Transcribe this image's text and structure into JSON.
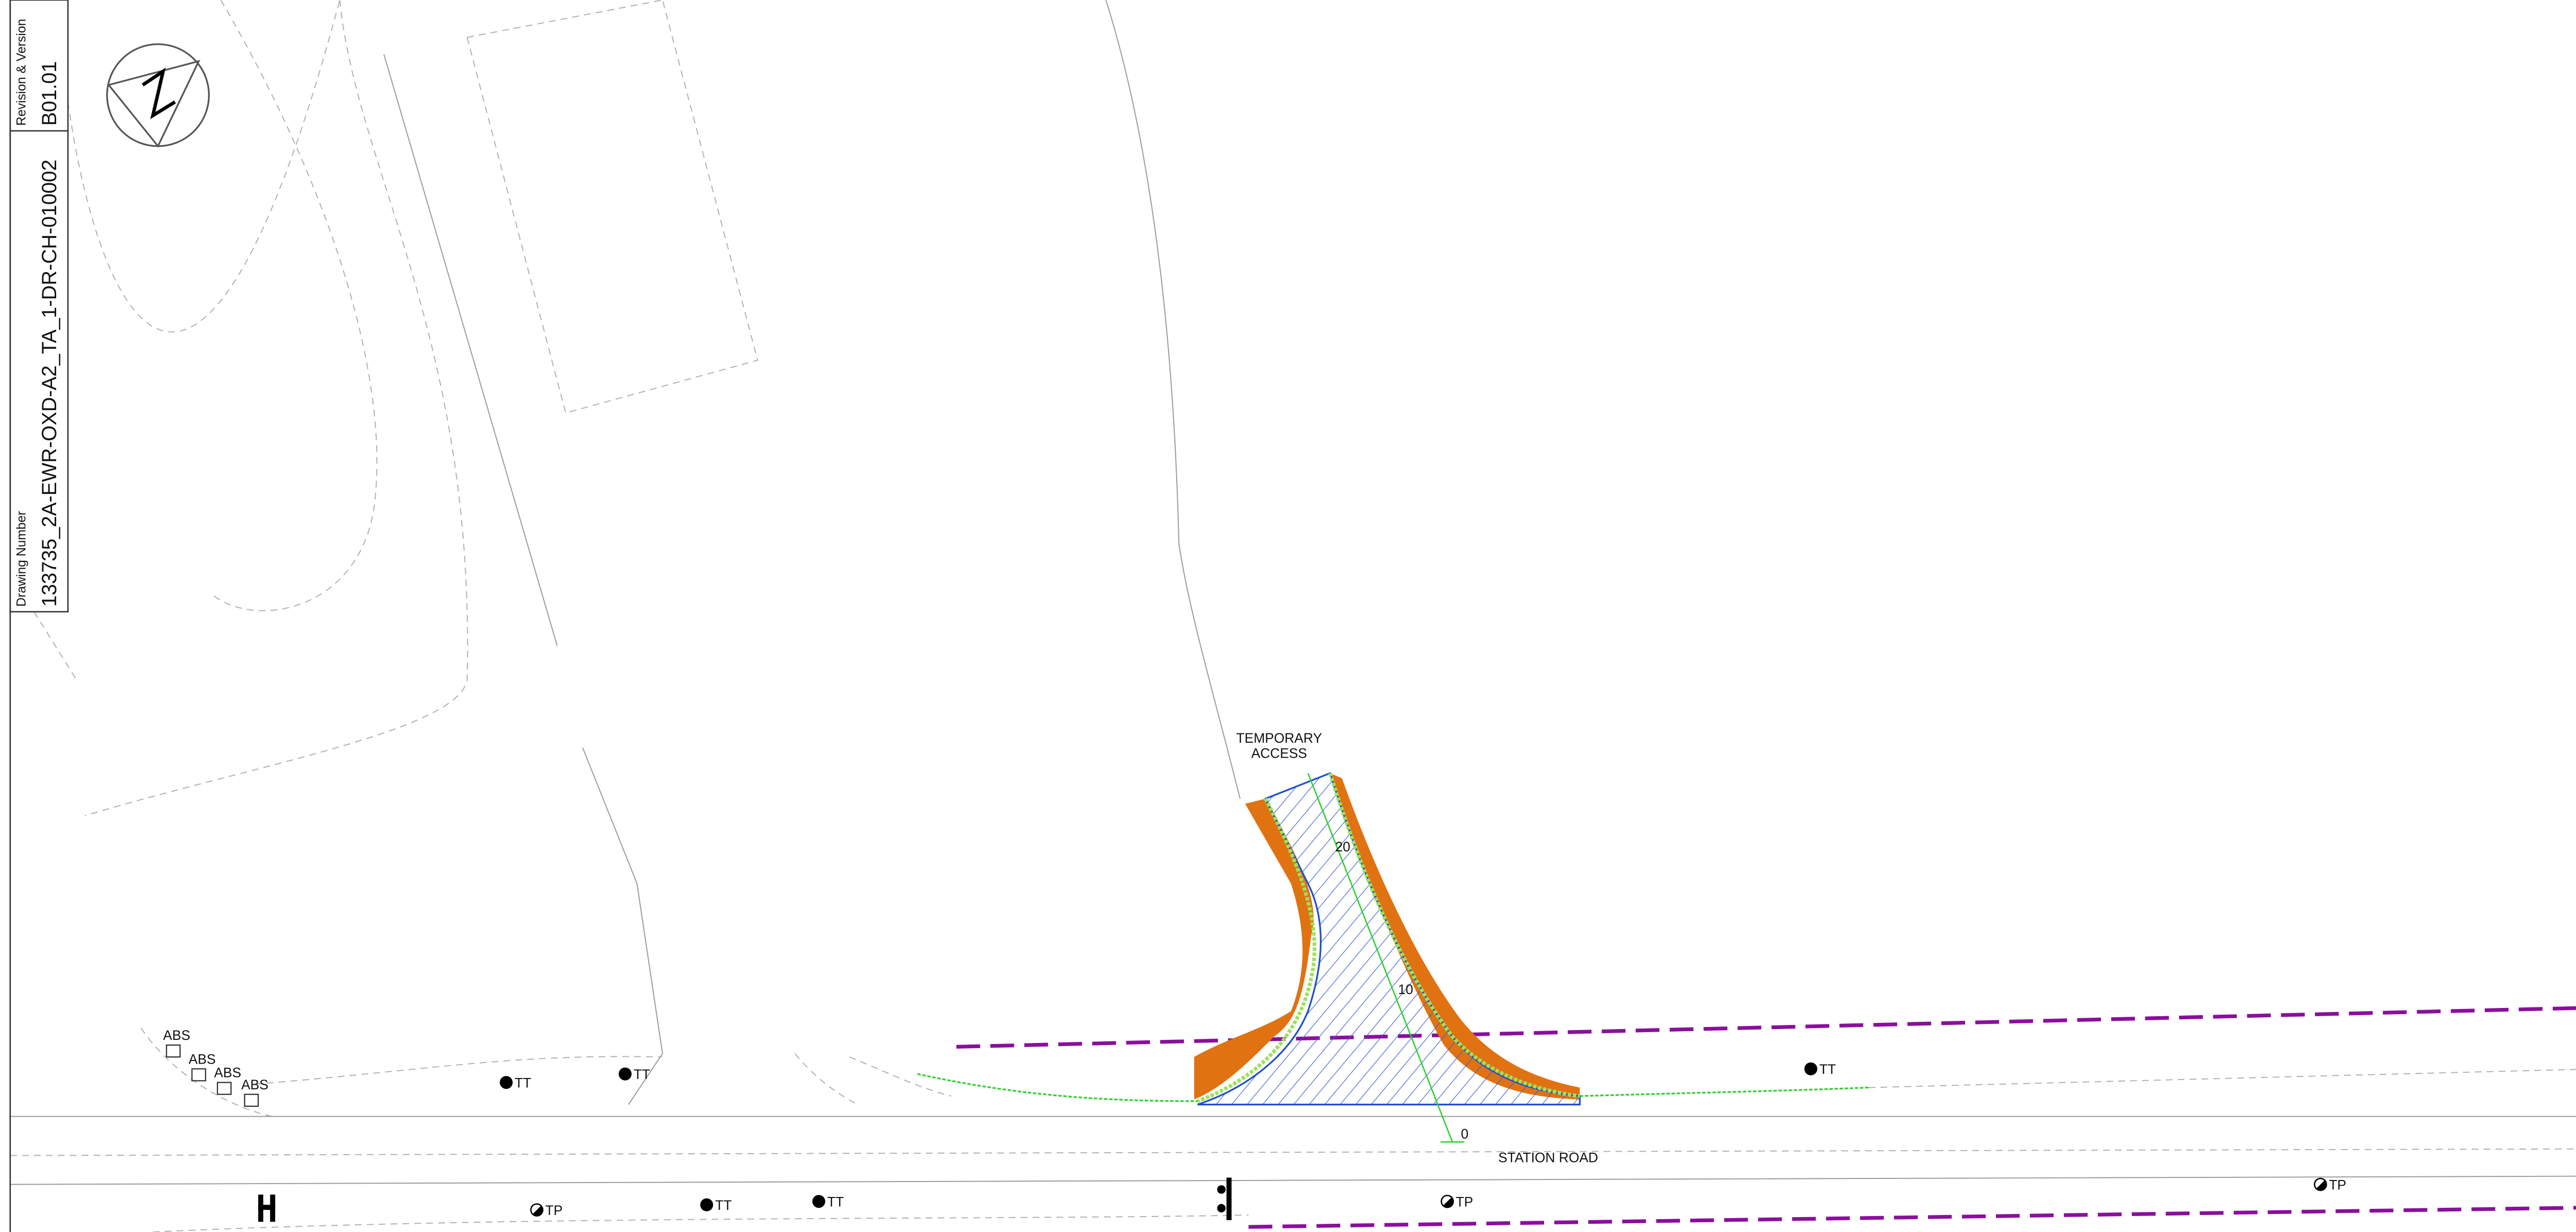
{
  "title_block": {
    "revision_label": "Revision & Version",
    "revision": "B01.01",
    "drawing_number_label": "Drawing Number",
    "drawing_number": "133735_2A-EWR-OXD-A2_TA_1-DR-CH-010002"
  },
  "annotations": {
    "access_label": [
      "TEMPORARY",
      "ACCESS"
    ],
    "chainage": [
      "20",
      "10",
      "0"
    ],
    "road_name": "STATION ROAD"
  },
  "symbols": [
    "ABS",
    "ABS",
    "ABS",
    "ABS",
    "TT",
    "TT",
    "TT",
    "TT",
    "TT",
    "TP",
    "TP",
    "TP"
  ]
}
